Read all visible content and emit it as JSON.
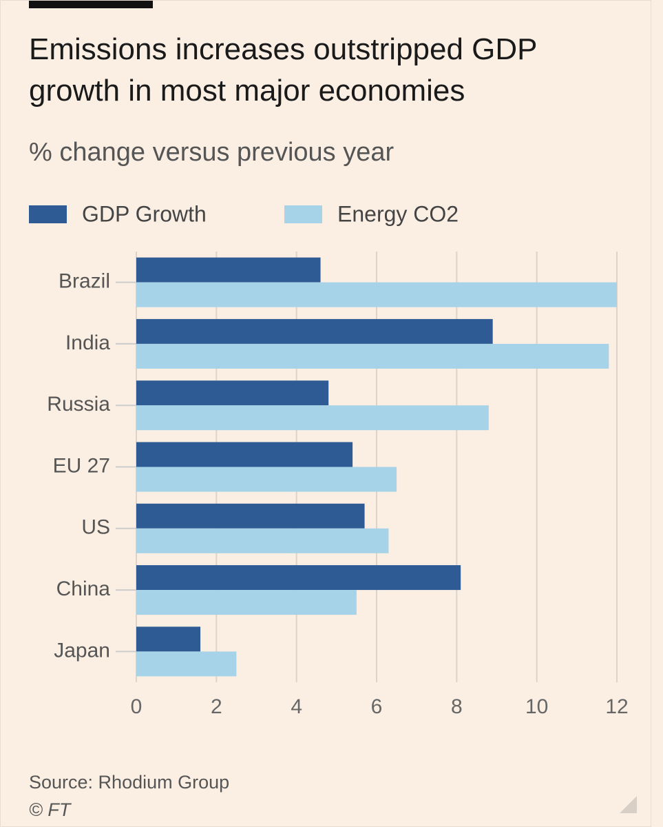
{
  "chart_data": {
    "type": "bar",
    "orientation": "horizontal",
    "title": "Emissions increases outstripped GDP growth in most major economies",
    "subtitle": "% change versus previous year",
    "categories": [
      "Brazil",
      "India",
      "Russia",
      "EU 27",
      "US",
      "China",
      "Japan"
    ],
    "series": [
      {
        "name": "GDP Growth",
        "color": "#2f5b94",
        "values": [
          4.6,
          8.9,
          4.8,
          5.4,
          5.7,
          8.1,
          1.6
        ]
      },
      {
        "name": "Energy CO2",
        "color": "#a7d3e8",
        "values": [
          12.0,
          11.8,
          8.8,
          6.5,
          6.3,
          5.5,
          2.5
        ]
      }
    ],
    "xlim": [
      0,
      12
    ],
    "xticks": [
      0,
      2,
      4,
      6,
      8,
      10,
      12
    ],
    "grid": true,
    "legend": "top-left",
    "source": "Source: Rhodium Group",
    "copyright": "© FT"
  }
}
